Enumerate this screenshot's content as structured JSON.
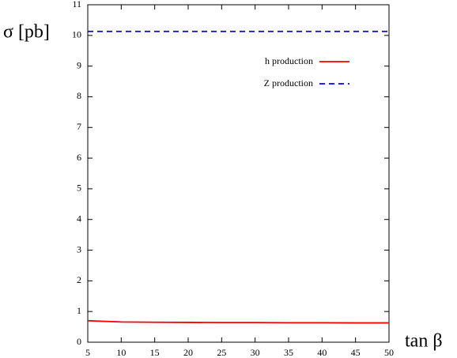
{
  "chart_data": {
    "type": "line",
    "x_label": "tan β",
    "y_label": "σ [pb]",
    "x": [
      5,
      10,
      15,
      20,
      25,
      30,
      35,
      40,
      45,
      50
    ],
    "series": [
      {
        "name": "h production",
        "color": "#ff0000",
        "dash": false,
        "values": [
          0.7,
          0.66,
          0.65,
          0.645,
          0.64,
          0.64,
          0.635,
          0.635,
          0.63,
          0.63
        ]
      },
      {
        "name": "Z production",
        "color": "#0000ff",
        "dash": true,
        "values": [
          10.13,
          10.13,
          10.13,
          10.13,
          10.13,
          10.13,
          10.13,
          10.13,
          10.13,
          10.13
        ]
      }
    ],
    "xlim": [
      5,
      50
    ],
    "ylim": [
      0,
      11
    ],
    "xticks": [
      5,
      10,
      15,
      20,
      25,
      30,
      35,
      40,
      45,
      50
    ],
    "yticks": [
      0,
      1,
      2,
      3,
      4,
      5,
      6,
      7,
      8,
      9,
      10,
      11
    ],
    "legend": "upper right",
    "grid": false
  }
}
